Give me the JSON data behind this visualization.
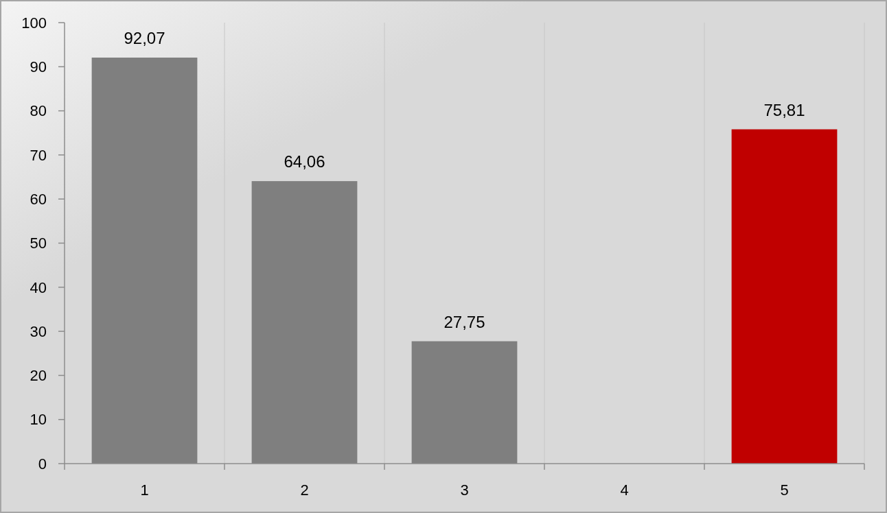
{
  "chart_data": {
    "type": "bar",
    "categories": [
      "1",
      "2",
      "3",
      "4",
      "5"
    ],
    "values": [
      92.07,
      64.06,
      27.75,
      null,
      75.81
    ],
    "colors": [
      "#7f7f7f",
      "#7f7f7f",
      "#7f7f7f",
      null,
      "#c00000"
    ],
    "value_labels": [
      "92,07",
      "64,06",
      "27,75",
      null,
      "75,81"
    ],
    "ylim": [
      0,
      100
    ],
    "yticks": [
      0,
      10,
      20,
      30,
      40,
      50,
      60,
      70,
      80,
      90,
      100
    ],
    "grid": "x"
  }
}
